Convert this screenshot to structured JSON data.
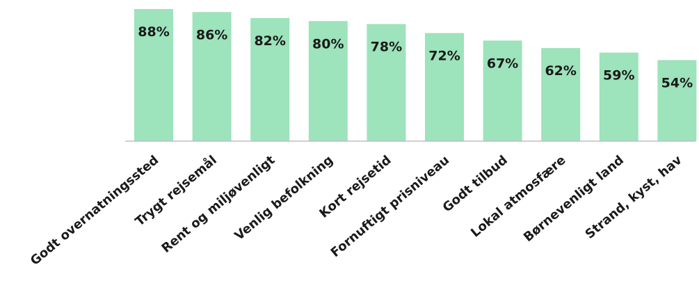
{
  "chart_data": {
    "type": "bar",
    "categories": [
      "Godt overnatningssted",
      "Trygt rejsemål",
      "Rent og miljøvenligt",
      "Venlig befolkning",
      "Kort rejsetid",
      "Fornuftigt prisniveau",
      "Godt tilbud",
      "Lokal atmosfære",
      "Børnevenligt land",
      "Strand, kyst, hav"
    ],
    "values": [
      88,
      86,
      82,
      80,
      78,
      72,
      67,
      62,
      59,
      54
    ],
    "value_labels": [
      "88%",
      "86%",
      "82%",
      "80%",
      "78%",
      "72%",
      "67%",
      "62%",
      "59%",
      "54%"
    ],
    "color": "#9de3bb"
  }
}
